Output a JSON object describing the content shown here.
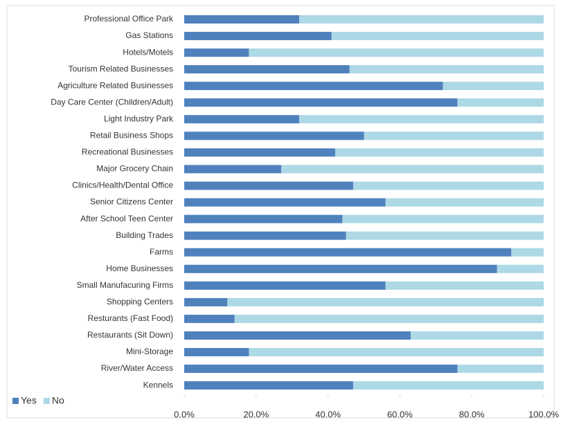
{
  "chart_data": {
    "type": "stacked-barh",
    "categories": [
      "Professional Office Park",
      "Gas Stations",
      "Hotels/Motels",
      "Tourism Related Businesses",
      "Agriculture Related Businesses",
      "Day Care Center (Children/Adult)",
      "Light Industry Park",
      "Retail Business Shops",
      "Recreational Businesses",
      "Major Grocery Chain",
      "Clinics/Health/Dental Office",
      "Senior Citizens Center",
      "After School Teen Center",
      "Building Trades",
      "Farms",
      "Home Businesses",
      "Small Manufacuring Firms",
      "Shopping Centers",
      "Resturants (Fast Food)",
      "Restaurants (Sit Down)",
      "Mini-Storage",
      "River/Water Access",
      "Kennels"
    ],
    "series": [
      {
        "name": "Yes",
        "color": "#4f81bd",
        "values": [
          32,
          41,
          18,
          46,
          72,
          76,
          32,
          50,
          42,
          27,
          47,
          56,
          44,
          45,
          91,
          87,
          56,
          12,
          14,
          63,
          18,
          76,
          47
        ]
      },
      {
        "name": "No",
        "color": "#add8e6",
        "values": [
          68,
          59,
          82,
          54,
          28,
          24,
          68,
          50,
          58,
          73,
          53,
          44,
          56,
          55,
          9,
          13,
          44,
          88,
          86,
          37,
          82,
          24,
          53
        ]
      }
    ],
    "xlim": [
      0,
      100
    ],
    "xticks": [
      {
        "value": 0,
        "label": "0.0%"
      },
      {
        "value": 20,
        "label": "20.0%"
      },
      {
        "value": 40,
        "label": "40.0%"
      },
      {
        "value": 60,
        "label": "60.0%"
      },
      {
        "value": 80,
        "label": "80.0%"
      },
      {
        "value": 100,
        "label": "100.0%"
      }
    ],
    "legend": "bottom-left"
  }
}
